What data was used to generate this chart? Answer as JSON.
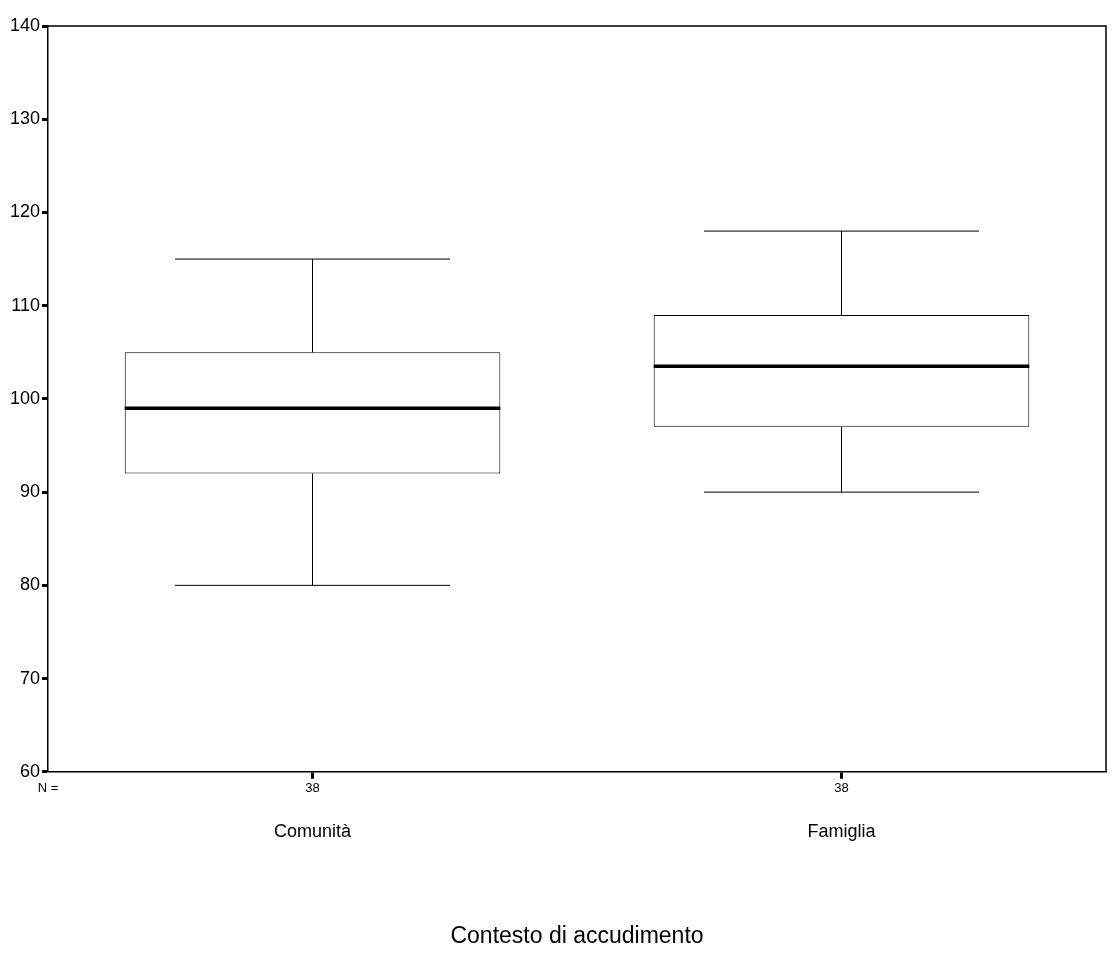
{
  "chart_data": {
    "type": "box",
    "xlabel": "Contesto di accudimento",
    "categories": [
      "Comunità",
      "Famiglia"
    ],
    "boxes": [
      {
        "low": 80,
        "q1": 92,
        "median": 99,
        "q3": 105,
        "high": 115
      },
      {
        "low": 90,
        "q1": 97,
        "median": 103.5,
        "q3": 109,
        "high": 118
      }
    ],
    "ylim": [
      60,
      140
    ],
    "yticks": [
      60,
      70,
      80,
      90,
      100,
      110,
      120,
      130,
      140
    ],
    "grid": false,
    "legend": false,
    "annotations": [
      "N =",
      "38",
      "38"
    ]
  }
}
